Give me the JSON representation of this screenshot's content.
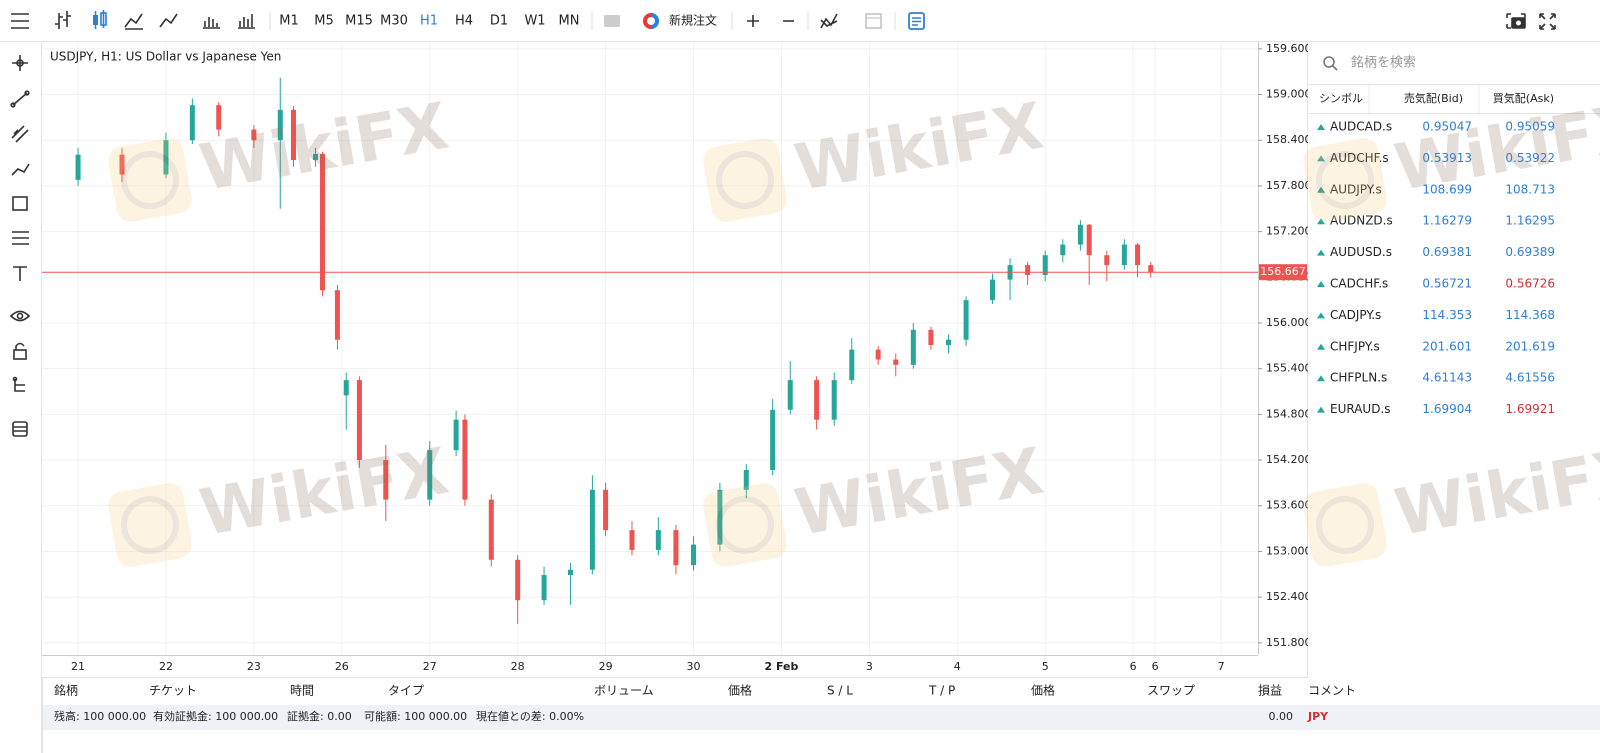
{
  "toolbar": {
    "timeframes": [
      "M1",
      "M5",
      "M15",
      "M30",
      "H1",
      "H4",
      "D1",
      "W1",
      "MN"
    ],
    "active_timeframe_index": 4,
    "new_order": "新規注文"
  },
  "chart_data": {
    "type": "candlestick",
    "title": "USDJPY, H1: US Dollar vs Japanese Yen",
    "x": [
      0,
      0.5,
      1,
      1.3,
      1.6,
      2,
      2.3,
      2.45,
      2.7,
      2.78,
      2.95,
      3.05,
      3.2,
      3.5,
      4,
      4.3,
      4.4,
      4.7,
      5,
      5.3,
      5.6,
      5.85,
      6,
      6.3,
      6.6,
      6.8,
      7,
      7.3,
      7.6,
      7.9,
      8.1,
      8.4,
      8.6,
      8.8,
      9.1,
      9.3,
      9.5,
      9.7,
      9.9,
      10.1,
      10.4,
      10.6,
      10.8,
      11,
      11.2,
      11.4,
      11.5,
      11.7,
      11.9,
      12.05,
      12.2
    ],
    "open": [
      157.88,
      158.21,
      157.95,
      158.4,
      158.86,
      158.54,
      158.4,
      158.8,
      158.14,
      158.22,
      156.43,
      155.05,
      155.25,
      154.2,
      153.68,
      154.33,
      154.73,
      153.68,
      152.89,
      152.36,
      152.69,
      152.76,
      153.81,
      153.28,
      153.02,
      153.28,
      152.82,
      153.09,
      153.81,
      154.07,
      154.86,
      155.25,
      154.73,
      155.25,
      155.65,
      155.52,
      155.45,
      155.91,
      155.71,
      155.78,
      156.3,
      156.57,
      156.76,
      156.63,
      156.89,
      157.03,
      157.29,
      156.89,
      156.76,
      157.03,
      156.76
    ],
    "high": [
      158.3,
      158.3,
      158.5,
      158.95,
      158.9,
      158.6,
      159.22,
      158.85,
      158.3,
      158.25,
      156.5,
      155.35,
      155.3,
      154.4,
      154.45,
      154.85,
      154.8,
      153.75,
      152.95,
      152.8,
      152.85,
      154.0,
      153.9,
      153.4,
      153.45,
      153.35,
      153.2,
      153.9,
      154.15,
      155.0,
      155.5,
      155.3,
      155.35,
      155.8,
      155.7,
      155.6,
      156.0,
      155.95,
      155.85,
      156.35,
      156.65,
      156.85,
      156.8,
      156.95,
      157.1,
      157.35,
      157.3,
      156.95,
      157.1,
      157.05,
      156.8
    ],
    "low": [
      157.8,
      157.85,
      157.9,
      158.35,
      158.45,
      158.3,
      157.5,
      158.05,
      158.05,
      156.35,
      155.65,
      154.6,
      154.1,
      153.4,
      153.6,
      154.25,
      153.6,
      152.8,
      152.05,
      152.3,
      152.3,
      152.7,
      153.2,
      152.95,
      152.95,
      152.7,
      152.75,
      153.0,
      153.7,
      154.0,
      154.8,
      154.6,
      154.65,
      155.2,
      155.45,
      155.3,
      155.4,
      155.65,
      155.6,
      155.7,
      156.25,
      156.3,
      156.5,
      156.55,
      156.8,
      156.95,
      156.5,
      156.55,
      156.7,
      156.6,
      156.6
    ],
    "close": [
      158.21,
      157.95,
      158.4,
      158.86,
      158.54,
      158.4,
      158.8,
      158.14,
      158.22,
      156.43,
      155.78,
      155.25,
      154.2,
      153.68,
      154.33,
      154.73,
      153.68,
      152.89,
      152.36,
      152.69,
      152.76,
      153.81,
      153.28,
      153.02,
      153.28,
      152.82,
      153.09,
      153.81,
      154.07,
      154.86,
      155.25,
      154.73,
      155.25,
      155.65,
      155.52,
      155.45,
      155.91,
      155.71,
      155.78,
      156.3,
      156.57,
      156.76,
      156.63,
      156.89,
      157.03,
      157.29,
      156.89,
      156.76,
      157.03,
      156.76,
      156.667
    ],
    "up_color": "#26a69a",
    "down_color": "#ef5350",
    "xlim": [
      -0.41,
      13.42
    ],
    "xticks": [
      {
        "value": 0,
        "label": "21"
      },
      {
        "value": 1,
        "label": "22"
      },
      {
        "value": 2,
        "label": "23"
      },
      {
        "value": 3,
        "label": "26"
      },
      {
        "value": 4,
        "label": "27"
      },
      {
        "value": 5,
        "label": "28"
      },
      {
        "value": 6,
        "label": "29"
      },
      {
        "value": 7,
        "label": "30"
      },
      {
        "value": 8,
        "label": "2 Feb"
      },
      {
        "value": 9,
        "label": "3"
      },
      {
        "value": 10,
        "label": "4"
      },
      {
        "value": 11,
        "label": "5"
      },
      {
        "value": 12,
        "label": "6"
      },
      {
        "value": 12.25,
        "label": "6"
      },
      {
        "value": 13,
        "label": "7"
      }
    ],
    "bold_xtick_index": 8,
    "ylim": [
      151.64,
      159.69
    ],
    "yticks": [
      {
        "value": 159.6,
        "label": "159.600"
      },
      {
        "value": 159,
        "label": "159.000"
      },
      {
        "value": 158.4,
        "label": "158.400"
      },
      {
        "value": 157.8,
        "label": "157.800"
      },
      {
        "value": 157.2,
        "label": "157.200"
      },
      {
        "value": 156.6,
        "label": "156.600"
      },
      {
        "value": 156,
        "label": "156.000"
      },
      {
        "value": 155.4,
        "label": "155.400"
      },
      {
        "value": 154.8,
        "label": "154.800"
      },
      {
        "value": 154.2,
        "label": "154.200"
      },
      {
        "value": 153.6,
        "label": "153.600"
      },
      {
        "value": 153,
        "label": "153.000"
      },
      {
        "value": 152.4,
        "label": "152.400"
      },
      {
        "value": 151.8,
        "label": "151.800"
      }
    ],
    "grid": true,
    "current_price": 156.667,
    "current_price_color": "#ef5350",
    "watermark": "WikiFX"
  },
  "watchlist": {
    "search_placeholder": "銘柄を検索",
    "headers": [
      "シンボル",
      "売気配(Bid)",
      "買気配(Ask)"
    ],
    "rows": [
      {
        "symbol": "AUDCAD.s",
        "bid": "0.95047",
        "ask": "0.95059",
        "ask_color": "#2f7fd6"
      },
      {
        "symbol": "AUDCHF.s",
        "bid": "0.53913",
        "ask": "0.53922",
        "ask_color": "#2f7fd6"
      },
      {
        "symbol": "AUDJPY.s",
        "bid": "108.699",
        "ask": "108.713",
        "ask_color": "#2f7fd6"
      },
      {
        "symbol": "AUDNZD.s",
        "bid": "1.16279",
        "ask": "1.16295",
        "ask_color": "#2f7fd6"
      },
      {
        "symbol": "AUDUSD.s",
        "bid": "0.69381",
        "ask": "0.69389",
        "ask_color": "#2f7fd6"
      },
      {
        "symbol": "CADCHF.s",
        "bid": "0.56721",
        "ask": "0.56726",
        "ask_color": "#d32f2f"
      },
      {
        "symbol": "CADJPY.s",
        "bid": "114.353",
        "ask": "114.368",
        "ask_color": "#2f7fd6"
      },
      {
        "symbol": "CHFJPY.s",
        "bid": "201.601",
        "ask": "201.619",
        "ask_color": "#2f7fd6"
      },
      {
        "symbol": "CHFPLN.s",
        "bid": "4.61143",
        "ask": "4.61556",
        "ask_color": "#2f7fd6"
      },
      {
        "symbol": "EURAUD.s",
        "bid": "1.69904",
        "ask": "1.69921",
        "ask_color": "#d32f2f"
      }
    ]
  },
  "positions": {
    "headers": [
      "銘柄",
      "チケット",
      "時間",
      "タイプ",
      "ボリューム",
      "価格",
      "S / L",
      "T / P",
      "価格",
      "スワップ",
      "損益",
      "コメント"
    ],
    "status": [
      "残高: 100 000.00",
      "有効証拠金: 100 000.00",
      "証拠金: 0.00",
      "可能額: 100 000.00",
      "現在値との差: 0.00%"
    ],
    "profit": "0.00",
    "currency": "JPY"
  }
}
